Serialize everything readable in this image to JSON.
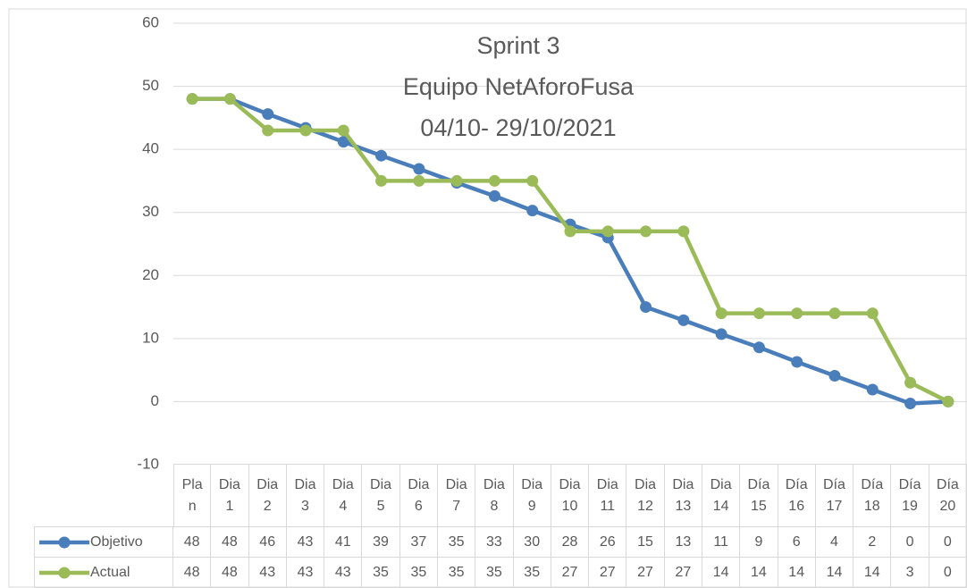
{
  "chart_data": {
    "type": "line",
    "title": [
      "Sprint 3",
      "Equipo NetAforoFusa",
      "04/10- 29/10/2021"
    ],
    "categories": [
      "Plan",
      "Dia 1",
      "Dia 2",
      "Dia 3",
      "Dia 4",
      "Dia 5",
      "Dia 6",
      "Dia 7",
      "Dia 8",
      "Dia 9",
      "Dia 10",
      "Dia 11",
      "Dia 12",
      "Dia 13",
      "Dia 14",
      "Día 15",
      "Día 16",
      "Día 17",
      "Día 18",
      "Día 19",
      "Día 20"
    ],
    "series": [
      {
        "name": "Objetivo",
        "color": "#4a7ebb",
        "values": [
          48,
          48,
          45.6,
          43.4,
          41.2,
          39,
          36.9,
          34.7,
          32.6,
          30.3,
          28.1,
          26,
          15,
          12.9,
          10.7,
          8.6,
          6.3,
          4.1,
          1.9,
          -0.3,
          0
        ],
        "value_labels": [
          "48",
          "48",
          "46",
          "43",
          "41",
          "39",
          "37",
          "35",
          "33",
          "30",
          "28",
          "26",
          "15",
          "13",
          "11",
          "9",
          "6",
          "4",
          "2",
          "0",
          "0"
        ]
      },
      {
        "name": "Actual",
        "color": "#9bbb59",
        "values": [
          48,
          48,
          43,
          43,
          43,
          35,
          35,
          35,
          35,
          35,
          27,
          27,
          27,
          27,
          14,
          14,
          14,
          14,
          14,
          3,
          0
        ]
      }
    ],
    "ylim": [
      -10,
      60
    ],
    "yticks": [
      -10,
      0,
      10,
      20,
      30,
      40,
      50,
      60
    ],
    "grid": true
  }
}
